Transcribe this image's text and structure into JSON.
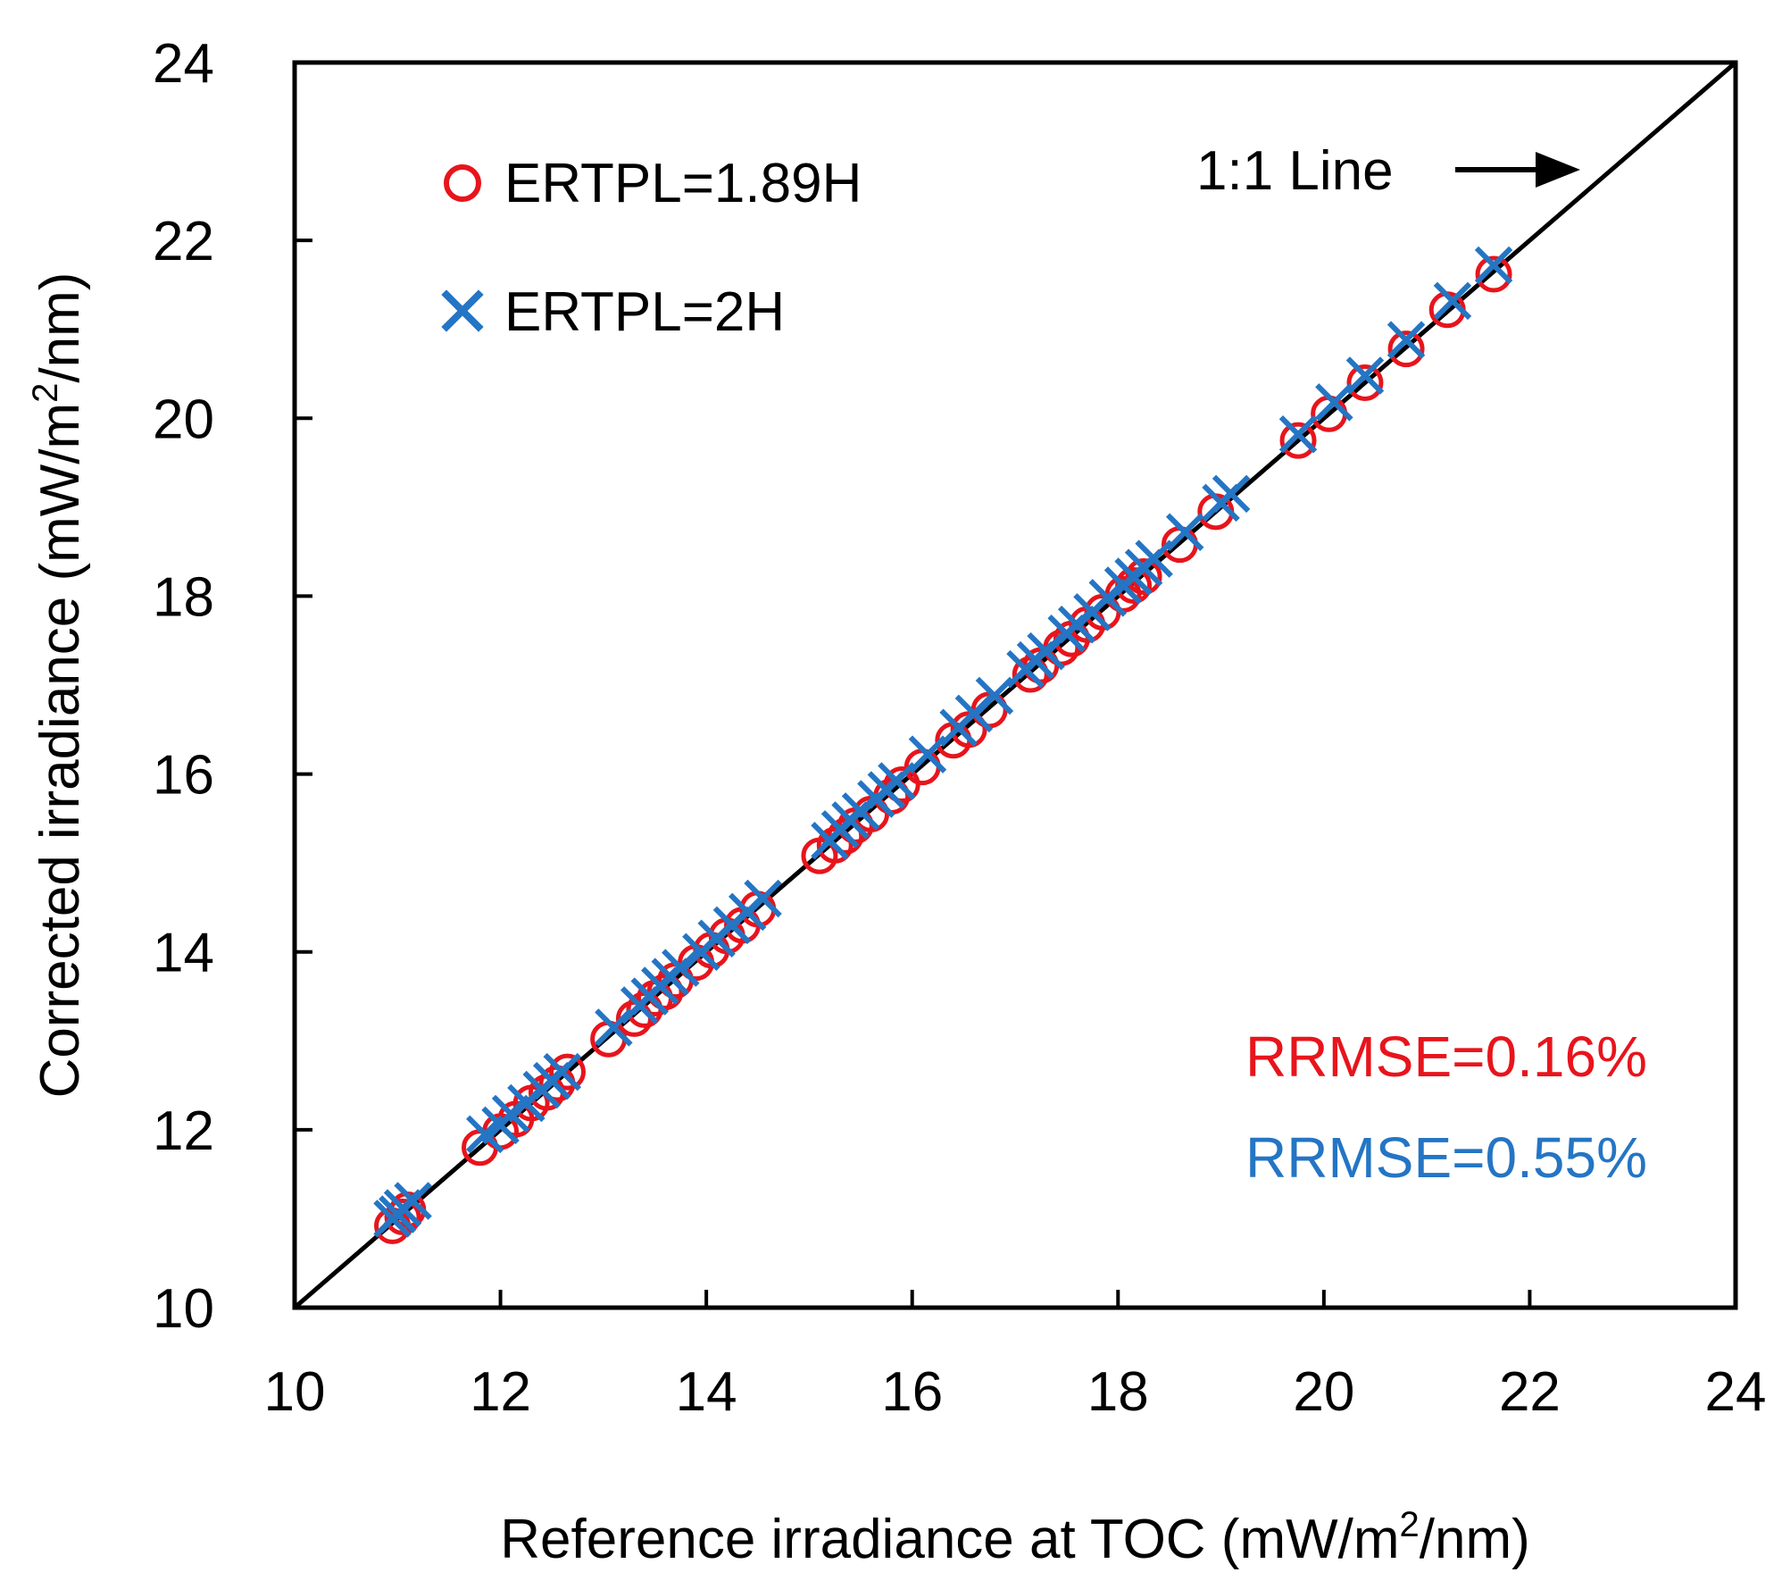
{
  "chart_data": {
    "type": "scatter",
    "title": "",
    "xlabel_main": "Reference irradiance at TOC (mW/m",
    "xlabel_sup": "2",
    "xlabel_tail": "/nm)",
    "ylabel_main": "Corrected irradiance (mW/m",
    "ylabel_sup": "2",
    "ylabel_tail": "/nm)",
    "xlim": [
      10,
      24
    ],
    "ylim": [
      10,
      24
    ],
    "xticks": [
      "10",
      "12",
      "14",
      "16",
      "18",
      "20",
      "22",
      "24"
    ],
    "yticks": [
      "10",
      "12",
      "14",
      "16",
      "18",
      "20",
      "22",
      "24"
    ],
    "grid": false,
    "legend_position": "top-left",
    "one_to_one_label": "1:1 Line",
    "colors": {
      "series1": "#e8141c",
      "series2": "#2475c4",
      "line": "#000000"
    },
    "series": [
      {
        "name": "ERTPL=1.89H",
        "marker": "circle",
        "x": [
          10.95,
          11.05,
          11.1,
          11.8,
          12.0,
          12.15,
          12.3,
          12.45,
          12.55,
          12.65,
          13.05,
          13.3,
          13.4,
          13.5,
          13.6,
          13.7,
          13.9,
          14.05,
          14.2,
          14.35,
          14.5,
          15.1,
          15.25,
          15.35,
          15.45,
          15.6,
          15.8,
          15.9,
          16.1,
          16.4,
          16.55,
          16.75,
          17.15,
          17.25,
          17.45,
          17.55,
          17.7,
          17.85,
          18.05,
          18.15,
          18.25,
          18.6,
          18.95,
          19.75,
          20.05,
          20.4,
          20.8,
          21.2,
          21.65
        ],
        "y": [
          10.92,
          11.02,
          11.1,
          11.8,
          11.98,
          12.12,
          12.3,
          12.42,
          12.52,
          12.65,
          13.02,
          13.25,
          13.35,
          13.48,
          13.55,
          13.68,
          13.88,
          14.02,
          14.18,
          14.3,
          14.48,
          15.08,
          15.2,
          15.3,
          15.42,
          15.55,
          15.75,
          15.88,
          16.08,
          16.38,
          16.5,
          16.72,
          17.12,
          17.22,
          17.42,
          17.52,
          17.68,
          17.82,
          18.02,
          18.12,
          18.22,
          18.58,
          18.95,
          19.75,
          20.05,
          20.4,
          20.78,
          21.22,
          21.62
        ]
      },
      {
        "name": "ERTPL=2H",
        "marker": "x",
        "x": [
          10.95,
          11.0,
          11.05,
          11.15,
          11.85,
          12.0,
          12.1,
          12.25,
          12.4,
          12.5,
          12.6,
          13.1,
          13.35,
          13.45,
          13.55,
          13.65,
          13.75,
          13.95,
          14.1,
          14.25,
          14.4,
          14.55,
          15.2,
          15.3,
          15.4,
          15.5,
          15.65,
          15.75,
          15.85,
          16.15,
          16.45,
          16.6,
          16.8,
          17.1,
          17.2,
          17.3,
          17.5,
          17.6,
          17.75,
          17.9,
          18.05,
          18.15,
          18.25,
          18.35,
          18.65,
          19.0,
          19.1,
          19.75,
          20.1,
          20.4,
          20.8,
          21.25,
          21.65
        ],
        "y": [
          11.0,
          11.05,
          11.12,
          11.2,
          11.95,
          12.05,
          12.18,
          12.3,
          12.45,
          12.55,
          12.65,
          13.15,
          13.4,
          13.5,
          13.62,
          13.72,
          13.82,
          14.0,
          14.15,
          14.3,
          14.45,
          14.6,
          15.25,
          15.38,
          15.48,
          15.58,
          15.72,
          15.82,
          15.92,
          16.22,
          16.52,
          16.68,
          16.88,
          17.18,
          17.28,
          17.38,
          17.58,
          17.68,
          17.82,
          17.98,
          18.12,
          18.22,
          18.32,
          18.42,
          18.72,
          19.05,
          19.15,
          19.82,
          20.18,
          20.48,
          20.88,
          21.32,
          21.72
        ]
      }
    ],
    "annotations": [
      {
        "text": "RRMSE=0.16%",
        "color": "#e8141c"
      },
      {
        "text": "RRMSE=0.55%",
        "color": "#2475c4"
      }
    ]
  }
}
